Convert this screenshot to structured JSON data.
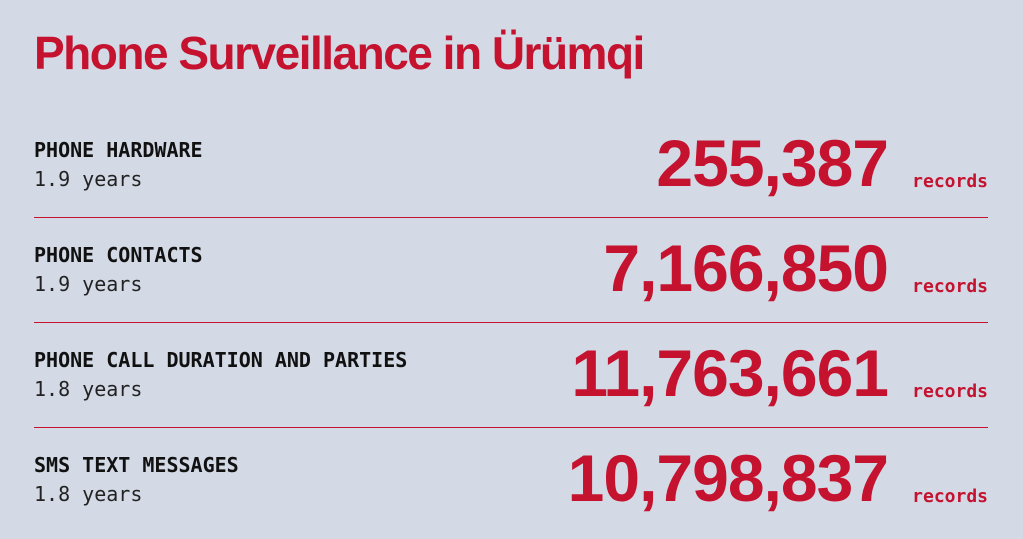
{
  "header": {
    "title": "Phone Surveillance in Ürümqi"
  },
  "rows": [
    {
      "label": "PHONE HARDWARE",
      "duration": "1.9 years",
      "count": "255,387",
      "unit": "records"
    },
    {
      "label": "PHONE CONTACTS",
      "duration": "1.9 years",
      "count": "7,166,850",
      "unit": "records"
    },
    {
      "label": "PHONE CALL DURATION AND PARTIES",
      "duration": "1.8 years",
      "count": "11,763,661",
      "unit": "records"
    },
    {
      "label": "SMS TEXT MESSAGES",
      "duration": "1.8 years",
      "count": "10,798,837",
      "unit": "records"
    }
  ]
}
